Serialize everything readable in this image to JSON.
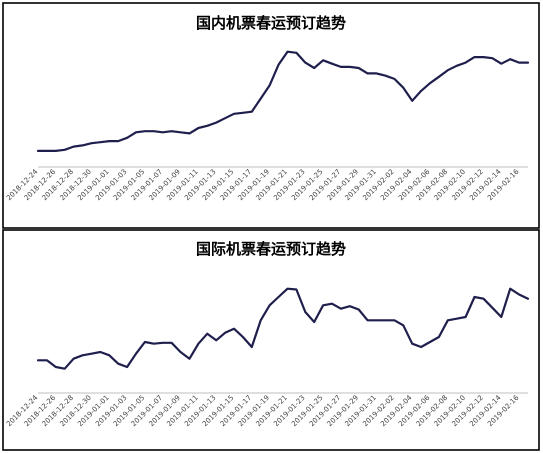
{
  "chart_data": [
    {
      "type": "line",
      "title": "国内机票春运预订趋势",
      "xlabel": "",
      "ylabel": "",
      "y_axis_visible": false,
      "ylim": [
        0,
        100
      ],
      "grid": false,
      "legend": "none",
      "series_color": "#1f1f4d",
      "tick_labels": [
        "2018-12-24",
        "2018-12-26",
        "2018-12-28",
        "2018-12-30",
        "2019-01-01",
        "2019-01-03",
        "2019-01-05",
        "2019-01-07",
        "2019-01-09",
        "2019-01-11",
        "2019-01-13",
        "2019-01-15",
        "2019-01-17",
        "2019-01-19",
        "2019-01-21",
        "2019-01-23",
        "2019-01-25",
        "2019-01-27",
        "2019-01-29",
        "2019-01-31",
        "2019-02-02",
        "2019-02-04",
        "2019-02-06",
        "2019-02-08",
        "2019-02-10",
        "2019-02-12",
        "2019-02-14",
        "2019-02-16"
      ],
      "x": [
        "2018-12-24",
        "2018-12-25",
        "2018-12-26",
        "2018-12-27",
        "2018-12-28",
        "2018-12-29",
        "2018-12-30",
        "2018-12-31",
        "2019-01-01",
        "2019-01-02",
        "2019-01-03",
        "2019-01-04",
        "2019-01-05",
        "2019-01-06",
        "2019-01-07",
        "2019-01-08",
        "2019-01-09",
        "2019-01-10",
        "2019-01-11",
        "2019-01-12",
        "2019-01-13",
        "2019-01-14",
        "2019-01-15",
        "2019-01-16",
        "2019-01-17",
        "2019-01-18",
        "2019-01-19",
        "2019-01-20",
        "2019-01-21",
        "2019-01-22",
        "2019-01-23",
        "2019-01-24",
        "2019-01-25",
        "2019-01-26",
        "2019-01-27",
        "2019-01-28",
        "2019-01-29",
        "2019-01-30",
        "2019-01-31",
        "2019-02-01",
        "2019-02-02",
        "2019-02-03",
        "2019-02-04",
        "2019-02-05",
        "2019-02-06",
        "2019-02-07",
        "2019-02-08",
        "2019-02-09",
        "2019-02-10",
        "2019-02-11",
        "2019-02-12",
        "2019-02-13",
        "2019-02-14",
        "2019-02-15",
        "2019-02-16",
        "2019-02-17"
      ],
      "values": [
        10.9,
        10.9,
        10.9,
        11.8,
        14.5,
        15.5,
        17.3,
        18.2,
        19.1,
        19.1,
        21.8,
        26.4,
        27.3,
        27.3,
        26.4,
        27.3,
        26.4,
        25.5,
        30,
        31.8,
        34.5,
        38.2,
        41.8,
        42.7,
        43.6,
        54.5,
        65.5,
        82.7,
        93.6,
        92.7,
        84.5,
        80,
        86.4,
        83.6,
        80.9,
        80.9,
        80,
        75.5,
        75.5,
        73.6,
        70.9,
        63.6,
        52.7,
        60.9,
        67.3,
        72.7,
        78.2,
        81.8,
        84.5,
        89.1,
        89.1,
        88.2,
        83.6,
        87.3,
        84.5,
        84.5
      ]
    },
    {
      "type": "line",
      "title": "国际机票春运预订趋势",
      "xlabel": "",
      "ylabel": "",
      "y_axis_visible": false,
      "ylim": [
        0,
        100
      ],
      "grid": false,
      "legend": "none",
      "series_color": "#1f1f4d",
      "tick_labels": [
        "2018-12-24",
        "2018-12-26",
        "2018-12-28",
        "2018-12-30",
        "2019-01-01",
        "2019-01-03",
        "2019-01-05",
        "2019-01-07",
        "2019-01-09",
        "2019-01-11",
        "2019-01-13",
        "2019-01-15",
        "2019-01-17",
        "2019-01-19",
        "2019-01-21",
        "2019-01-23",
        "2019-01-25",
        "2019-01-27",
        "2019-01-29",
        "2019-01-31",
        "2019-02-02",
        "2019-02-04",
        "2019-02-06",
        "2019-02-08",
        "2019-02-10",
        "2019-02-12",
        "2019-02-14",
        "2019-02-16"
      ],
      "x": [
        "2018-12-24",
        "2018-12-25",
        "2018-12-26",
        "2018-12-27",
        "2018-12-28",
        "2018-12-29",
        "2018-12-30",
        "2018-12-31",
        "2019-01-01",
        "2019-01-02",
        "2019-01-03",
        "2019-01-04",
        "2019-01-05",
        "2019-01-06",
        "2019-01-07",
        "2019-01-08",
        "2019-01-09",
        "2019-01-10",
        "2019-01-11",
        "2019-01-12",
        "2019-01-13",
        "2019-01-14",
        "2019-01-15",
        "2019-01-16",
        "2019-01-17",
        "2019-01-18",
        "2019-01-19",
        "2019-01-20",
        "2019-01-21",
        "2019-01-22",
        "2019-01-23",
        "2019-01-24",
        "2019-01-25",
        "2019-01-26",
        "2019-01-27",
        "2019-01-28",
        "2019-01-29",
        "2019-01-30",
        "2019-01-31",
        "2019-02-01",
        "2019-02-02",
        "2019-02-03",
        "2019-02-04",
        "2019-02-05",
        "2019-02-06",
        "2019-02-07",
        "2019-02-08",
        "2019-02-09",
        "2019-02-10",
        "2019-02-11",
        "2019-02-12",
        "2019-02-13",
        "2019-02-14",
        "2019-02-15",
        "2019-02-16",
        "2019-02-17"
      ],
      "values": [
        26.7,
        26.7,
        20,
        18.3,
        28.3,
        31.7,
        33.3,
        35,
        31.7,
        23.3,
        20,
        33.3,
        45,
        43.3,
        44.2,
        44.2,
        35,
        28.3,
        43.3,
        53.3,
        46.7,
        54.2,
        58.3,
        50,
        40,
        66.7,
        81.7,
        90,
        98.3,
        97.5,
        75,
        65,
        81.7,
        83.3,
        78.3,
        80.8,
        77.5,
        66.7,
        66.7,
        66.7,
        66.7,
        61.7,
        43.3,
        40,
        45,
        50,
        66.7,
        68.3,
        70,
        90,
        88.3,
        79.2,
        70,
        98.3,
        92.5,
        88.3
      ]
    }
  ]
}
